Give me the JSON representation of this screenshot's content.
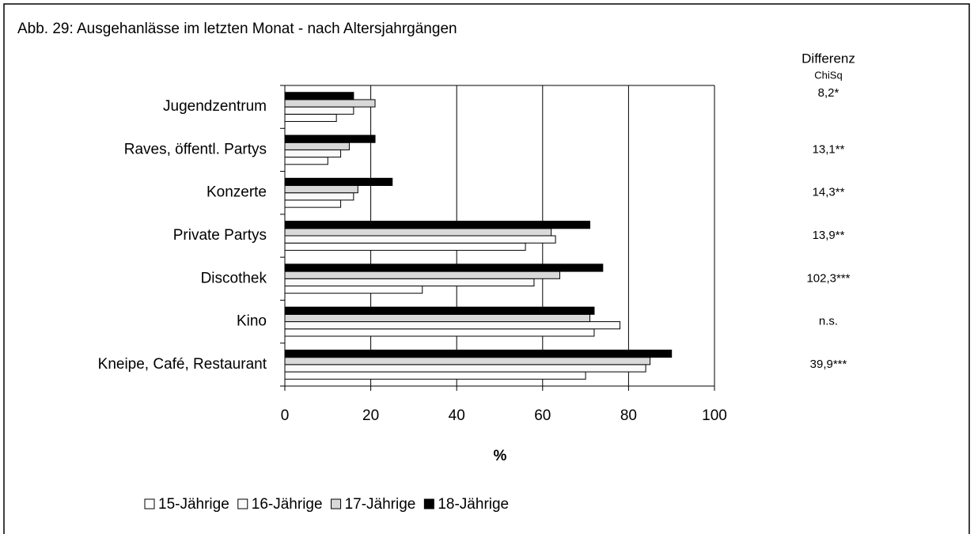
{
  "chart_data": {
    "type": "barh",
    "title": "Abb. 29: Ausgehanlässe im letzten Monat - nach Altersjahrgängen",
    "xlabel": "%",
    "categories": [
      "Jugendzentrum",
      "Raves, öffentl. Partys",
      "Konzerte",
      "Private Partys",
      "Discothek",
      "Kino",
      "Kneipe, Café, Restaurant"
    ],
    "series": [
      {
        "name": "15-Jährige",
        "color": "#ffffff",
        "values": [
          12,
          10,
          13,
          56,
          32,
          72,
          70
        ]
      },
      {
        "name": "16-Jährige",
        "color": "#fafafa",
        "values": [
          16,
          13,
          16,
          63,
          58,
          78,
          84
        ]
      },
      {
        "name": "17-Jährige",
        "color": "#d9d9d9",
        "values": [
          21,
          15,
          17,
          62,
          64,
          71,
          85
        ]
      },
      {
        "name": "18-Jährige",
        "color": "#000000",
        "values": [
          16,
          21,
          25,
          71,
          74,
          72,
          90
        ]
      }
    ],
    "xlim": [
      0,
      100
    ],
    "xticks": [
      0,
      20,
      40,
      60,
      80,
      100
    ],
    "grid": true,
    "stat_header": [
      "Differenz",
      "ChiSq"
    ],
    "stat_labels": [
      "8,2*",
      "13,1**",
      "14,3**",
      "13,9**",
      "102,3***",
      "n.s.",
      "39,9***"
    ],
    "legend": "bottom"
  }
}
